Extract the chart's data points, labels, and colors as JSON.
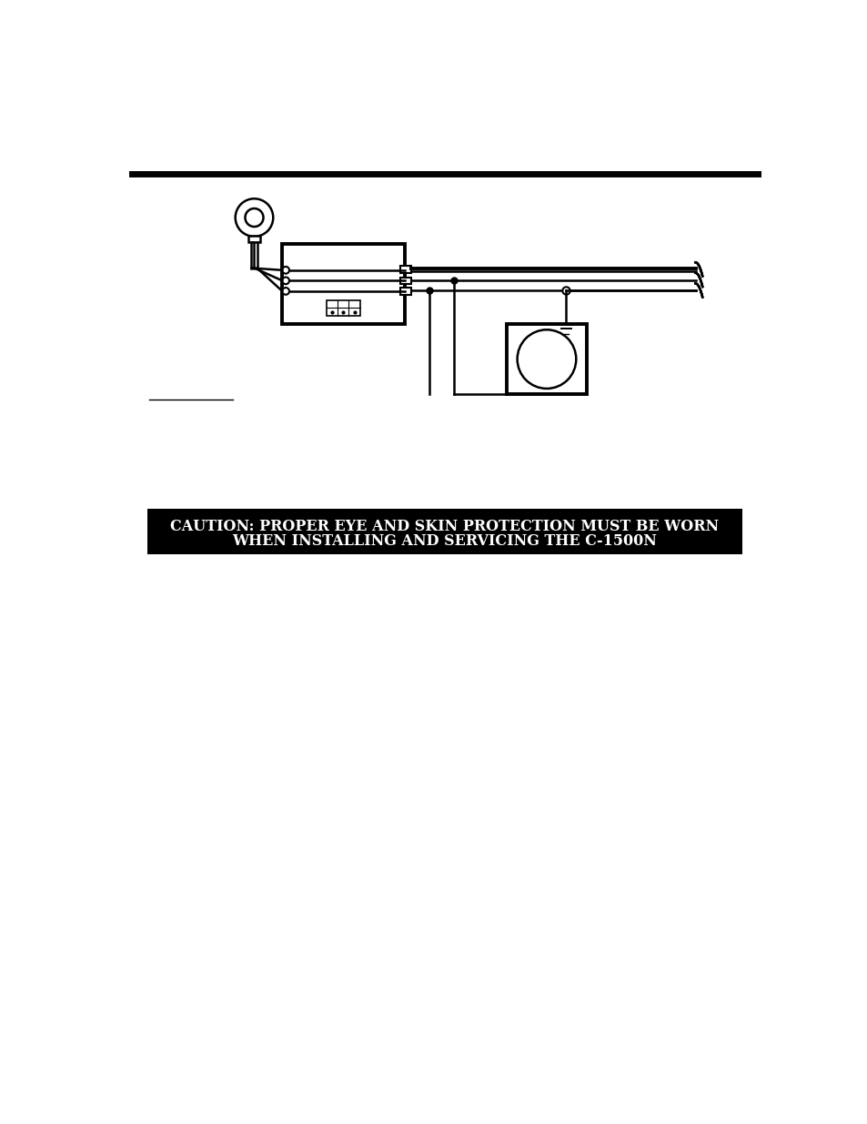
{
  "bg_color": "#ffffff",
  "line_color": "#000000",
  "caution_bg": "#000000",
  "caution_text_color": "#ffffff",
  "caution_line1": "CAUTION: PROPER EYE AND SKIN PROTECTION MUST BE WORN",
  "caution_line2": "WHEN INSTALLING AND SERVICING THE C-1500N",
  "figure_width": 9.54,
  "figure_height": 12.35
}
